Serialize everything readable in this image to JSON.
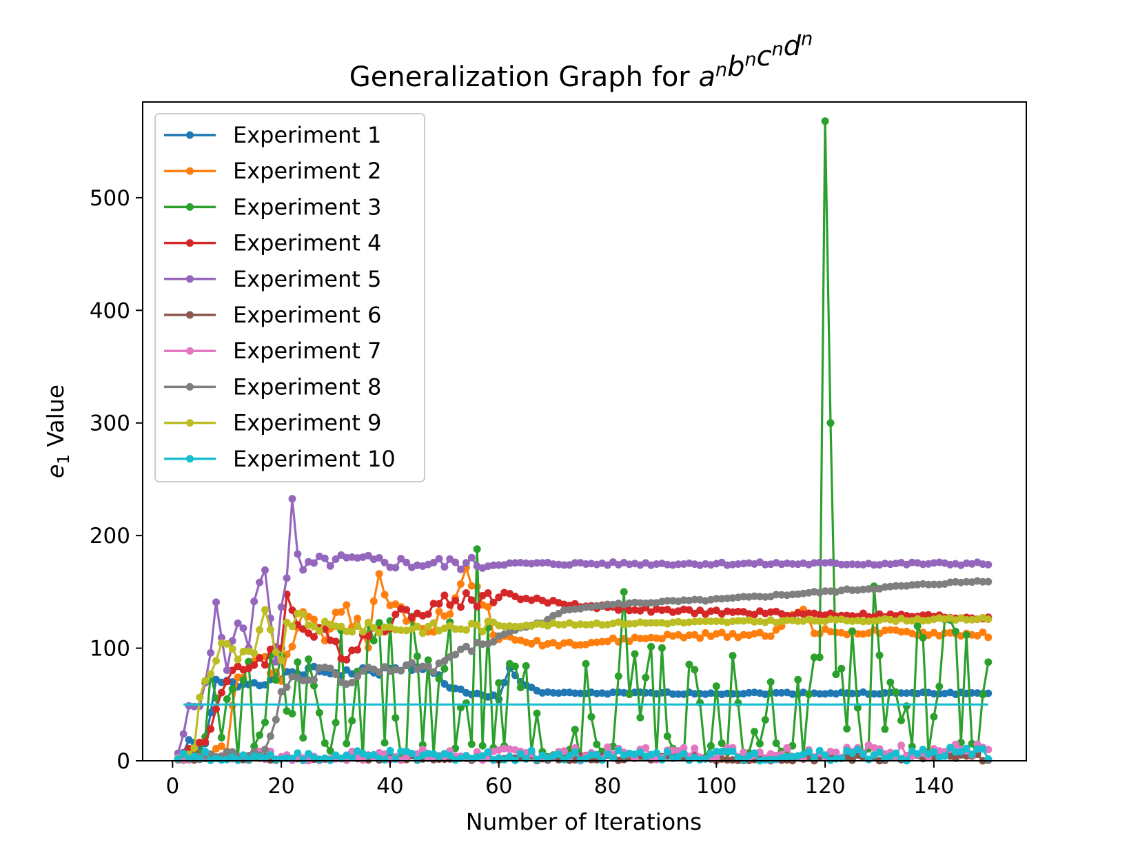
{
  "chart_data": {
    "type": "line",
    "title": {
      "prefix": "Generalization Graph for ",
      "formula": [
        [
          "a",
          "n"
        ],
        [
          "b",
          "n"
        ],
        [
          "c",
          "n"
        ],
        [
          "d",
          "n"
        ]
      ]
    },
    "xlabel": "Number of Iterations",
    "ylabel": {
      "base": "e",
      "sub": "1",
      "suffix": " Value"
    },
    "xlim": [
      -5.5,
      157
    ],
    "ylim": [
      0,
      585
    ],
    "xticks": [
      0,
      20,
      40,
      60,
      80,
      100,
      120,
      140
    ],
    "yticks": [
      0,
      100,
      200,
      300,
      400,
      500
    ],
    "legend_position": "upper-left",
    "grid": false,
    "series": [
      {
        "name": "Experiment 1",
        "color": "#1f77b4",
        "style": "waves",
        "anchors": [
          [
            1,
            2
          ],
          [
            3,
            15
          ],
          [
            6,
            12
          ],
          [
            8,
            70
          ],
          [
            12,
            68
          ],
          [
            18,
            72
          ],
          [
            25,
            80
          ],
          [
            32,
            78
          ],
          [
            40,
            80
          ],
          [
            46,
            85
          ],
          [
            50,
            70
          ],
          [
            54,
            58
          ],
          [
            60,
            55
          ],
          [
            62,
            83
          ],
          [
            64,
            70
          ],
          [
            68,
            60
          ],
          [
            150,
            60
          ]
        ],
        "amp": 4,
        "seed": 1
      },
      {
        "name": "Experiment 2",
        "color": "#ff7f0e",
        "style": "waves",
        "anchors": [
          [
            1,
            2
          ],
          [
            10,
            8
          ],
          [
            12,
            70
          ],
          [
            16,
            90
          ],
          [
            20,
            80
          ],
          [
            24,
            140
          ],
          [
            28,
            110
          ],
          [
            32,
            135
          ],
          [
            36,
            110
          ],
          [
            38,
            160
          ],
          [
            40,
            138
          ],
          [
            44,
            130
          ],
          [
            48,
            122
          ],
          [
            52,
            140
          ],
          [
            54,
            165
          ],
          [
            56,
            155
          ],
          [
            58,
            130
          ],
          [
            60,
            110
          ],
          [
            64,
            106
          ],
          [
            70,
            104
          ],
          [
            80,
            106
          ],
          [
            90,
            110
          ],
          [
            110,
            113
          ],
          [
            116,
            135
          ],
          [
            118,
            115
          ],
          [
            150,
            112
          ]
        ],
        "amp": 10,
        "seed": 2
      },
      {
        "name": "Experiment 3",
        "color": "#2ca02c",
        "style": "noisy",
        "base": [
          [
            1,
            2
          ],
          [
            10,
            40
          ],
          [
            20,
            60
          ],
          [
            30,
            70
          ],
          [
            50,
            80
          ],
          [
            60,
            70
          ],
          [
            70,
            50
          ],
          [
            80,
            60
          ],
          [
            90,
            55
          ],
          [
            100,
            55
          ],
          [
            110,
            60
          ],
          [
            150,
            90
          ]
        ],
        "amp": 55,
        "seed": 3,
        "spikes": [
          [
            56,
            188
          ],
          [
            83,
            150
          ],
          [
            120,
            568
          ],
          [
            121,
            300
          ],
          [
            125,
            115
          ],
          [
            129,
            155
          ]
        ]
      },
      {
        "name": "Experiment 4",
        "color": "#d62728",
        "style": "waves",
        "anchors": [
          [
            1,
            2
          ],
          [
            6,
            20
          ],
          [
            9,
            60
          ],
          [
            12,
            80
          ],
          [
            16,
            90
          ],
          [
            20,
            100
          ],
          [
            21,
            150
          ],
          [
            24,
            115
          ],
          [
            28,
            110
          ],
          [
            32,
            95
          ],
          [
            35,
            110
          ],
          [
            40,
            125
          ],
          [
            45,
            135
          ],
          [
            52,
            142
          ],
          [
            58,
            145
          ],
          [
            61,
            148
          ],
          [
            66,
            143
          ],
          [
            75,
            138
          ],
          [
            90,
            133
          ],
          [
            110,
            131
          ],
          [
            150,
            127
          ]
        ],
        "amp": 8,
        "seed": 4
      },
      {
        "name": "Experiment 5",
        "color": "#9467bd",
        "style": "waves",
        "anchors": [
          [
            1,
            2
          ],
          [
            3,
            45
          ],
          [
            5,
            50
          ],
          [
            7,
            100
          ],
          [
            8,
            135
          ],
          [
            10,
            85
          ],
          [
            12,
            122
          ],
          [
            14,
            105
          ],
          [
            15,
            140
          ],
          [
            17,
            170
          ],
          [
            19,
            90
          ],
          [
            20,
            140
          ],
          [
            21,
            160
          ],
          [
            22,
            228
          ],
          [
            23,
            180
          ],
          [
            24,
            170
          ],
          [
            27,
            176
          ],
          [
            30,
            178
          ],
          [
            36,
            177
          ],
          [
            45,
            175
          ],
          [
            150,
            175
          ]
        ],
        "amp": 6,
        "seed": 5
      },
      {
        "name": "Experiment 6",
        "color": "#8c564b",
        "style": "noisy",
        "base": [
          [
            1,
            1
          ],
          [
            150,
            3
          ]
        ],
        "amp": 3,
        "seed": 6
      },
      {
        "name": "Experiment 7",
        "color": "#e377c2",
        "style": "noisy",
        "base": [
          [
            1,
            2
          ],
          [
            150,
            10
          ]
        ],
        "amp": 6,
        "seed": 7
      },
      {
        "name": "Experiment 8",
        "color": "#7f7f7f",
        "style": "waves",
        "anchors": [
          [
            1,
            2
          ],
          [
            10,
            5
          ],
          [
            16,
            8
          ],
          [
            18,
            20
          ],
          [
            20,
            60
          ],
          [
            22,
            75
          ],
          [
            25,
            70
          ],
          [
            28,
            85
          ],
          [
            32,
            65
          ],
          [
            36,
            80
          ],
          [
            40,
            80
          ],
          [
            44,
            85
          ],
          [
            48,
            82
          ],
          [
            52,
            95
          ],
          [
            58,
            105
          ],
          [
            62,
            115
          ],
          [
            68,
            123
          ],
          [
            72,
            133
          ],
          [
            76,
            137
          ],
          [
            85,
            140
          ],
          [
            100,
            143
          ],
          [
            120,
            150
          ],
          [
            140,
            157
          ],
          [
            150,
            160
          ]
        ],
        "amp": 4,
        "seed": 8
      },
      {
        "name": "Experiment 9",
        "color": "#bcbd22",
        "style": "waves",
        "anchors": [
          [
            1,
            2
          ],
          [
            4,
            10
          ],
          [
            5,
            60
          ],
          [
            8,
            90
          ],
          [
            9,
            105
          ],
          [
            12,
            92
          ],
          [
            15,
            95
          ],
          [
            17,
            130
          ],
          [
            19,
            100
          ],
          [
            20,
            90
          ],
          [
            21,
            118
          ],
          [
            23,
            128
          ],
          [
            26,
            120
          ],
          [
            30,
            118
          ],
          [
            50,
            118
          ],
          [
            60,
            120
          ],
          [
            80,
            122
          ],
          [
            110,
            124
          ],
          [
            150,
            126
          ]
        ],
        "amp": 5,
        "seed": 9
      },
      {
        "name": "Experiment 10",
        "color": "#17becf",
        "style": "noisy",
        "base": [
          [
            1,
            2
          ],
          [
            150,
            6
          ]
        ],
        "amp": 6,
        "seed": 10,
        "flat": [
          [
            2,
            50
          ],
          [
            150,
            50
          ]
        ]
      }
    ]
  }
}
